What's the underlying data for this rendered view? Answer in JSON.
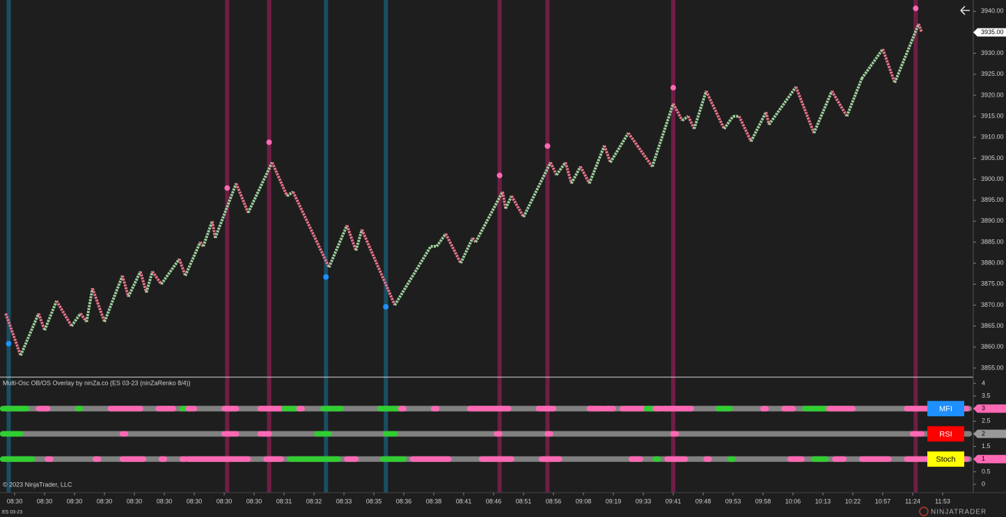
{
  "chart_data": {
    "type": "line",
    "instrument": "ES 03-23",
    "indicator_title": "Multi-Osc OB/OS Overlay by ninZa.co (ES 03-23 (ninZaRenko 8/4))",
    "copyright": "© 2023 NinjaTrader, LLC",
    "logo": "NINJATRADER",
    "x": [
      -3,
      2,
      8,
      10,
      14,
      19,
      22,
      24,
      26,
      30,
      36,
      38,
      42,
      44,
      46,
      49,
      55,
      57,
      62,
      63,
      66,
      67,
      74,
      78,
      86,
      91,
      93,
      105,
      111,
      114,
      116,
      127,
      139,
      141,
      144,
      149,
      153,
      154,
      163,
      164,
      166,
      170,
      179,
      181,
      184,
      186,
      189,
      192,
      197,
      199,
      205,
      208,
      213,
      220,
      223,
      225,
      227,
      231,
      237,
      240,
      242,
      246,
      251,
      252,
      261,
      267,
      273,
      278,
      283,
      290,
      294,
      302,
      303
    ],
    "series": [
      {
        "color_up": "#9ccf9c",
        "color_down": "#e8738a",
        "values": [
          3868,
          3858,
          3868,
          3864,
          3871,
          3865,
          3868,
          3866,
          3874,
          3866,
          3877,
          3872,
          3878,
          3873,
          3878,
          3875,
          3881,
          3877,
          3885,
          3884,
          3890,
          3886,
          3899,
          3892,
          3904,
          3896,
          3897,
          3879,
          3889,
          3883,
          3888,
          3870,
          3884,
          3884,
          3887,
          3880,
          3886,
          3885,
          3897,
          3893,
          3896,
          3891,
          3904,
          3901,
          3904,
          3899,
          3903,
          3899,
          3908,
          3904,
          3911,
          3908,
          3903,
          3918,
          3914,
          3915,
          3912,
          3921,
          3912,
          3915,
          3915,
          3909,
          3916,
          3913,
          3922,
          3911,
          3921,
          3915,
          3924,
          3931,
          3923,
          3937,
          3935
        ]
      }
    ],
    "overbought": {
      "color": "#ff69b4",
      "band_color": "#8a1f52",
      "x": [
        71,
        85,
        162,
        178,
        220,
        301
      ],
      "values": [
        3897.9,
        3908.8,
        3900.9,
        3907.9,
        3921.8,
        3940.7
      ]
    },
    "oversold": {
      "color": "#1e90ff",
      "band_color": "#1a5f7a",
      "x": [
        -2,
        104,
        124
      ],
      "values": [
        3860.8,
        3876.7,
        3869.6
      ]
    },
    "last_price": {
      "value": 3935,
      "label": "3935.00"
    },
    "xlim": [
      -4.9,
      320.7
    ],
    "ylim": [
      3853,
      3942.7
    ],
    "xticks": [
      {
        "value": 0,
        "label": "08:30"
      },
      {
        "value": 10,
        "label": "08:30"
      },
      {
        "value": 20,
        "label": "08:30"
      },
      {
        "value": 30,
        "label": "08:30"
      },
      {
        "value": 40,
        "label": "08:30"
      },
      {
        "value": 50,
        "label": "08:30"
      },
      {
        "value": 60,
        "label": "08:30"
      },
      {
        "value": 70,
        "label": "08:30"
      },
      {
        "value": 80,
        "label": "08:30"
      },
      {
        "value": 90,
        "label": "08:31"
      },
      {
        "value": 100,
        "label": "08:32"
      },
      {
        "value": 110,
        "label": "08:33"
      },
      {
        "value": 120,
        "label": "08:35"
      },
      {
        "value": 130,
        "label": "08:36"
      },
      {
        "value": 140,
        "label": "08:38"
      },
      {
        "value": 150,
        "label": "08:41"
      },
      {
        "value": 160,
        "label": "08:46"
      },
      {
        "value": 170,
        "label": "08:51"
      },
      {
        "value": 180,
        "label": "08:56"
      },
      {
        "value": 190,
        "label": "09:08"
      },
      {
        "value": 200,
        "label": "09:19"
      },
      {
        "value": 210,
        "label": "09:33"
      },
      {
        "value": 220,
        "label": "09:41"
      },
      {
        "value": 230,
        "label": "09:48"
      },
      {
        "value": 240,
        "label": "09:53"
      },
      {
        "value": 250,
        "label": "09:58"
      },
      {
        "value": 260,
        "label": "10:06"
      },
      {
        "value": 270,
        "label": "10:13"
      },
      {
        "value": 280,
        "label": "10:22"
      },
      {
        "value": 290,
        "label": "10:57"
      },
      {
        "value": 300,
        "label": "11:24"
      },
      {
        "value": 310,
        "label": "11:53"
      }
    ],
    "yticks": [
      {
        "value": 3855,
        "label": "3855.00"
      },
      {
        "value": 3860,
        "label": "3860.00"
      },
      {
        "value": 3865,
        "label": "3865.00"
      },
      {
        "value": 3870,
        "label": "3870.00"
      },
      {
        "value": 3875,
        "label": "3875.00"
      },
      {
        "value": 3880,
        "label": "3880.00"
      },
      {
        "value": 3885,
        "label": "3885.00"
      },
      {
        "value": 3890,
        "label": "3890.00"
      },
      {
        "value": 3895,
        "label": "3895.00"
      },
      {
        "value": 3900,
        "label": "3900.00"
      },
      {
        "value": 3905,
        "label": "3905.00"
      },
      {
        "value": 3910,
        "label": "3910.00"
      },
      {
        "value": 3915,
        "label": "3915.00"
      },
      {
        "value": 3920,
        "label": "3920.00"
      },
      {
        "value": 3925,
        "label": "3925.00"
      },
      {
        "value": 3930,
        "label": "3930.00"
      },
      {
        "value": 3935,
        "label": "3935.00"
      },
      {
        "value": 3940,
        "label": "3940.00"
      }
    ],
    "osc": {
      "ylim": [
        -0.33,
        4.22
      ],
      "yticks": [
        0,
        0.5,
        1,
        1.5,
        2,
        2.5,
        3,
        3.5,
        4
      ],
      "base_color": "#808080",
      "rows": [
        {
          "name": "MFI",
          "level": 3,
          "button_color": "#1e90ff",
          "text_color": "#ffffff",
          "segments": [
            {
              "x": [
                -4,
                4
              ],
              "color": "#32cd32"
            },
            {
              "x": [
                8,
                11
              ],
              "color": "#ff69b4"
            },
            {
              "x": [
                21,
                22
              ],
              "color": "#32cd32"
            },
            {
              "x": [
                32,
                42
              ],
              "color": "#ff69b4"
            },
            {
              "x": [
                48,
                53
              ],
              "color": "#ff69b4"
            },
            {
              "x": [
                56,
                57
              ],
              "color": "#32cd32"
            },
            {
              "x": [
                58,
                60
              ],
              "color": "#ff69b4"
            },
            {
              "x": [
                70,
                74
              ],
              "color": "#ff69b4"
            },
            {
              "x": [
                82,
                89
              ],
              "color": "#ff69b4"
            },
            {
              "x": [
                90,
                94
              ],
              "color": "#32cd32"
            },
            {
              "x": [
                95,
                96
              ],
              "color": "#ff69b4"
            },
            {
              "x": [
                103,
                109
              ],
              "color": "#32cd32"
            },
            {
              "x": [
                122,
                128
              ],
              "color": "#32cd32"
            },
            {
              "x": [
                129,
                130
              ],
              "color": "#ff69b4"
            },
            {
              "x": [
                140,
                141
              ],
              "color": "#ff69b4"
            },
            {
              "x": [
                152,
                165
              ],
              "color": "#ff69b4"
            },
            {
              "x": [
                175,
                180
              ],
              "color": "#ff69b4"
            },
            {
              "x": [
                192,
                196
              ],
              "color": "#ff69b4"
            },
            {
              "x": [
                197,
                200
              ],
              "color": "#ff69b4"
            },
            {
              "x": [
                203,
                210
              ],
              "color": "#ff69b4"
            },
            {
              "x": [
                211,
                213
              ],
              "color": "#32cd32"
            },
            {
              "x": [
                214,
                216
              ],
              "color": "#ff69b4"
            },
            {
              "x": [
                217,
                226
              ],
              "color": "#ff69b4"
            },
            {
              "x": [
                235,
                239
              ],
              "color": "#32cd32"
            },
            {
              "x": [
                250,
                251
              ],
              "color": "#ff69b4"
            },
            {
              "x": [
                257,
                260
              ],
              "color": "#ff69b4"
            },
            {
              "x": [
                264,
                271
              ],
              "color": "#32cd32"
            },
            {
              "x": [
                272,
                280
              ],
              "color": "#ff69b4"
            },
            {
              "x": [
                298,
                318
              ],
              "color": "#ff69b4"
            }
          ]
        },
        {
          "name": "RSI",
          "level": 2,
          "button_color": "#ff0000",
          "text_color": "#ffffff",
          "segments": [
            {
              "x": [
                -4,
                2
              ],
              "color": "#32cd32"
            },
            {
              "x": [
                36,
                37
              ],
              "color": "#ff69b4"
            },
            {
              "x": [
                70,
                74
              ],
              "color": "#ff69b4"
            },
            {
              "x": [
                82,
                85
              ],
              "color": "#ff69b4"
            },
            {
              "x": [
                101,
                105
              ],
              "color": "#32cd32"
            },
            {
              "x": [
                124,
                127
              ],
              "color": "#32cd32"
            },
            {
              "x": [
                161,
                162
              ],
              "color": "#ff69b4"
            },
            {
              "x": [
                178,
                179
              ],
              "color": "#ff69b4"
            },
            {
              "x": [
                220,
                221
              ],
              "color": "#ff69b4"
            },
            {
              "x": [
                300,
                303
              ],
              "color": "#ff69b4"
            }
          ]
        },
        {
          "name": "Stoch",
          "level": 1,
          "button_color": "#ffff00",
          "text_color": "#000000",
          "segments": [
            {
              "x": [
                -4,
                6
              ],
              "color": "#32cd32"
            },
            {
              "x": [
                11,
                12
              ],
              "color": "#ff69b4"
            },
            {
              "x": [
                27,
                28
              ],
              "color": "#ff69b4"
            },
            {
              "x": [
                36,
                43
              ],
              "color": "#ff69b4"
            },
            {
              "x": [
                49,
                50
              ],
              "color": "#ff69b4"
            },
            {
              "x": [
                56,
                57
              ],
              "color": "#ff69b4"
            },
            {
              "x": [
                58,
                78
              ],
              "color": "#ff69b4"
            },
            {
              "x": [
                84,
                89
              ],
              "color": "#ff69b4"
            },
            {
              "x": [
                92,
                108
              ],
              "color": "#32cd32"
            },
            {
              "x": [
                111,
                114
              ],
              "color": "#ff69b4"
            },
            {
              "x": [
                123,
                130
              ],
              "color": "#32cd32"
            },
            {
              "x": [
                133,
                145
              ],
              "color": "#ff69b4"
            },
            {
              "x": [
                156,
                166
              ],
              "color": "#ff69b4"
            },
            {
              "x": [
                176,
                182
              ],
              "color": "#ff69b4"
            },
            {
              "x": [
                206,
                209
              ],
              "color": "#ff69b4"
            },
            {
              "x": [
                214,
                215
              ],
              "color": "#32cd32"
            },
            {
              "x": [
                218,
                224
              ],
              "color": "#ff69b4"
            },
            {
              "x": [
                231,
                232
              ],
              "color": "#ff69b4"
            },
            {
              "x": [
                239,
                240
              ],
              "color": "#32cd32"
            },
            {
              "x": [
                259,
                263
              ],
              "color": "#ff69b4"
            },
            {
              "x": [
                267,
                271
              ],
              "color": "#32cd32"
            },
            {
              "x": [
                274,
                277
              ],
              "color": "#ff69b4"
            },
            {
              "x": [
                283,
                292
              ],
              "color": "#ff69b4"
            },
            {
              "x": [
                298,
                318
              ],
              "color": "#ff69b4"
            }
          ]
        }
      ]
    }
  }
}
